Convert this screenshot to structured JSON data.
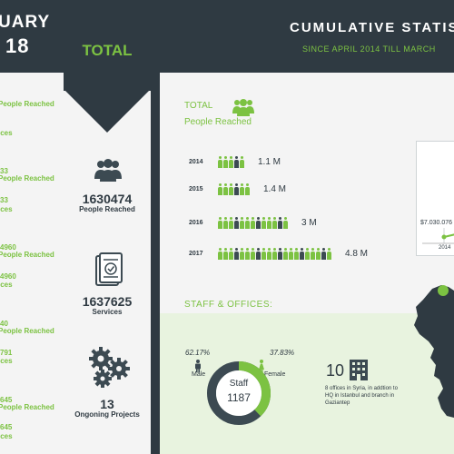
{
  "left": {
    "title_line1": "UARY",
    "title_line2": "18",
    "items": [
      {
        "text": "People Reached",
        "color": "#7cc242"
      },
      {
        "text": "ices",
        "color": "#7cc242"
      },
      {
        "text": "33",
        "color": "#7cc242"
      },
      {
        "text": "People Reached",
        "color": "#7cc242"
      },
      {
        "text": "33",
        "color": "#7cc242"
      },
      {
        "text": "ices",
        "color": "#7cc242"
      },
      {
        "text": "4960",
        "color": "#7cc242"
      },
      {
        "text": "People Reached",
        "color": "#7cc242"
      },
      {
        "text": "4960",
        "color": "#7cc242"
      },
      {
        "text": "ices",
        "color": "#7cc242"
      },
      {
        "text": "40",
        "color": "#7cc242"
      },
      {
        "text": "People Reached",
        "color": "#7cc242"
      },
      {
        "text": "791",
        "color": "#7cc242"
      },
      {
        "text": "ices",
        "color": "#7cc242"
      },
      {
        "text": "645",
        "color": "#7cc242"
      },
      {
        "text": "People Reached",
        "color": "#7cc242"
      },
      {
        "text": "645",
        "color": "#7cc242"
      },
      {
        "text": "ices",
        "color": "#7cc242"
      }
    ]
  },
  "center": {
    "title": "TOTAL",
    "stats": [
      {
        "value": "1630474",
        "label": "People Reached",
        "icon": "people-group-icon"
      },
      {
        "value": "1637625",
        "label": "Services",
        "icon": "checklist-icon"
      },
      {
        "value": "13",
        "label": "Ongoning Projects",
        "icon": "gears-icon"
      }
    ]
  },
  "header": {
    "title": "CUMULATIVE STATIS",
    "subtitle": "SINCE APRIL 2014 TILL MARCH"
  },
  "people_section": {
    "title_line1": "TOTAL",
    "title_line2": "People Reached",
    "rows": [
      {
        "year": "2014",
        "value": "1.1 M",
        "icons": 5
      },
      {
        "year": "2015",
        "value": "1.4 M",
        "icons": 6
      },
      {
        "year": "2016",
        "value": "3 M",
        "icons": 13
      },
      {
        "year": "2017",
        "value": "4.8 M",
        "icons": 21
      }
    ]
  },
  "mini_chart": {
    "value_label": "$7.030.076",
    "year_label": "2014"
  },
  "staff_section": {
    "title": "STAFF & OFFICES:",
    "male_pct": "62.17%",
    "male_label": "Male",
    "female_pct": "37.83%",
    "female_label": "Female",
    "staff_label": "Staff",
    "staff_count": "1187",
    "female_fraction": 0.3783,
    "offices_count": "10",
    "offices_text": "8 offices in Syria, in addtion to HQ in Istanbul and branch in Gaziantep"
  },
  "colors": {
    "accent": "#7cc242",
    "dark": "#2f3a42"
  }
}
